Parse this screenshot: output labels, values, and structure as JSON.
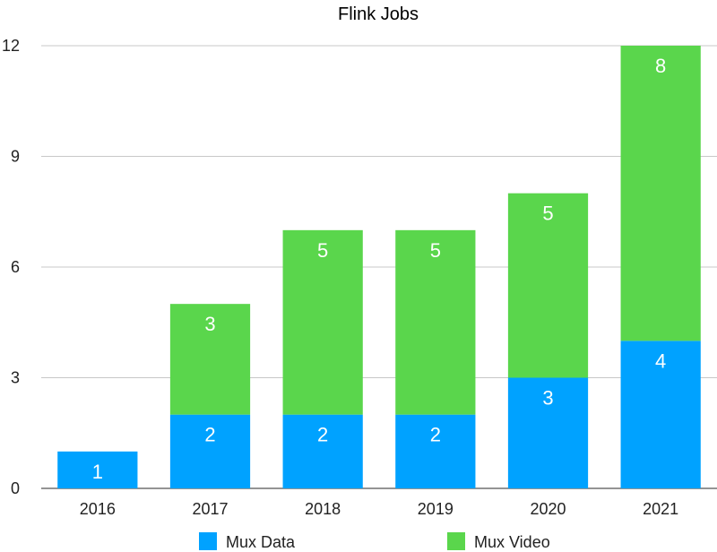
{
  "chart_data": {
    "type": "bar",
    "stacked": true,
    "title": "Flink Jobs",
    "xlabel": "",
    "ylabel": "",
    "categories": [
      "2016",
      "2017",
      "2018",
      "2019",
      "2020",
      "2021"
    ],
    "series": [
      {
        "name": "Mux Data",
        "color": "#00a2ff",
        "values": [
          1,
          2,
          2,
          2,
          3,
          4
        ]
      },
      {
        "name": "Mux Video",
        "color": "#5ad64c",
        "values": [
          0,
          3,
          5,
          5,
          5,
          8
        ]
      }
    ],
    "ylim": [
      0,
      12
    ],
    "yticks": [
      0,
      3,
      6,
      9,
      12
    ],
    "grid": true,
    "legend_position": "bottom"
  }
}
